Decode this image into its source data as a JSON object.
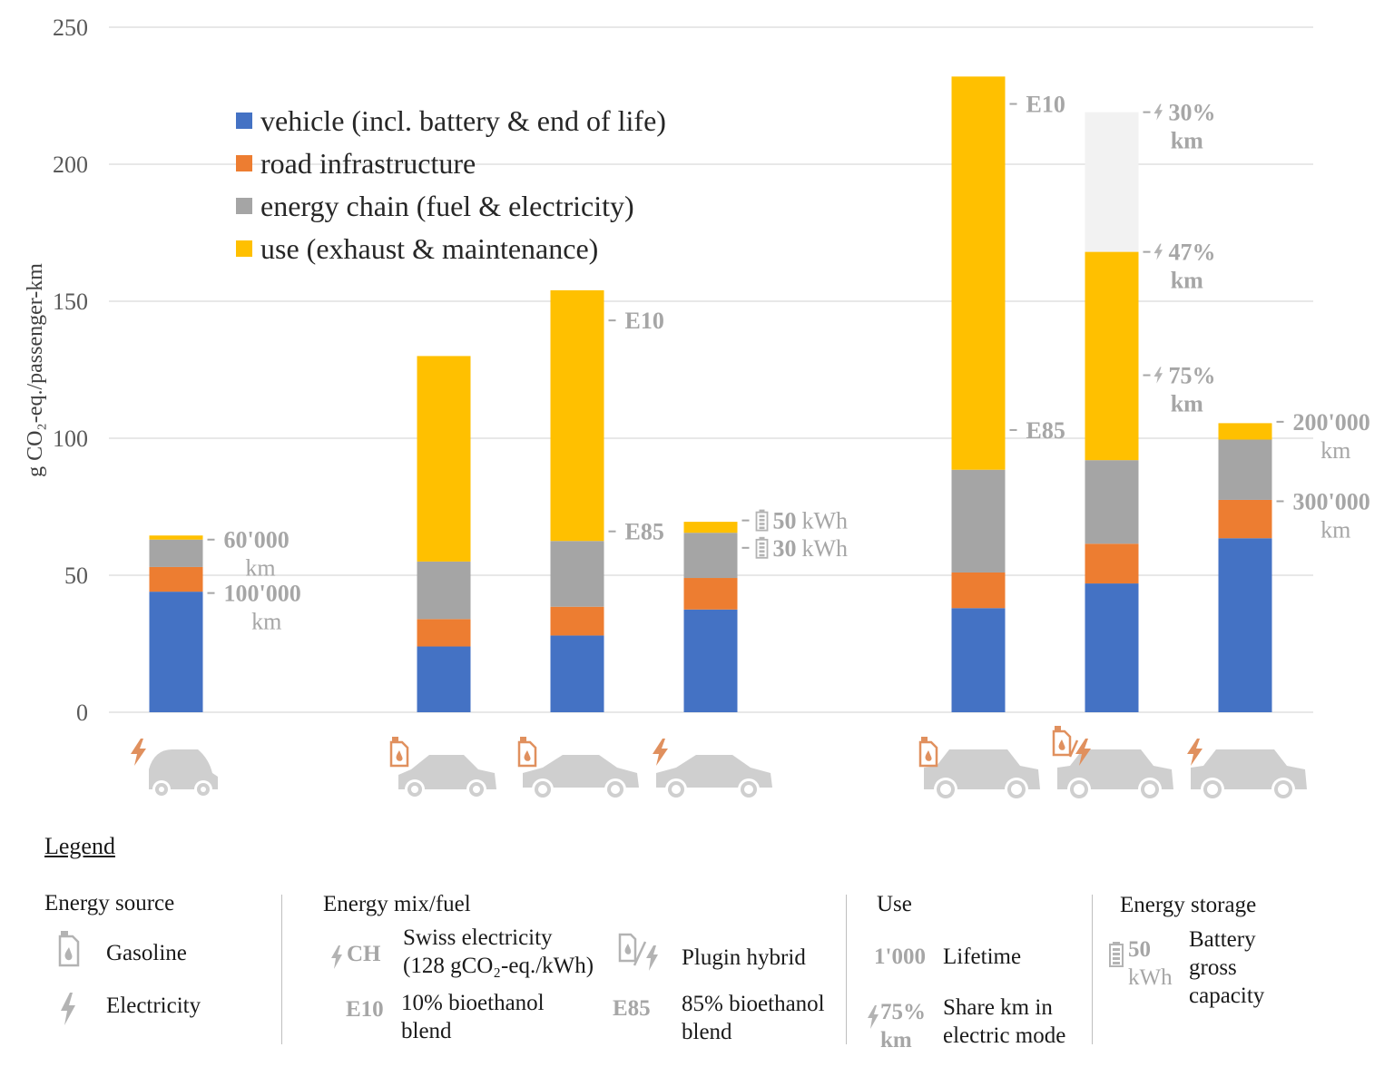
{
  "chart_data": {
    "type": "bar",
    "stacked": true,
    "ylabel": "g CO₂-eq./passenger-km",
    "ylim": [
      0,
      250
    ],
    "yticks": [
      0,
      50,
      100,
      150,
      200,
      250
    ],
    "grid": true,
    "legend_position": "top-left",
    "categories": [
      "electric small car",
      "gasoline compact SUV",
      "gasoline mid-size car",
      "electric mid-size car",
      "gasoline large SUV",
      "plugin hybrid large SUV",
      "electric large SUV"
    ],
    "vehicle_icons": [
      {
        "energy": "electricity",
        "body": "small-car"
      },
      {
        "energy": "gasoline",
        "body": "compact-suv"
      },
      {
        "energy": "gasoline",
        "body": "sedan"
      },
      {
        "energy": "electricity",
        "body": "sedan"
      },
      {
        "energy": "gasoline",
        "body": "large-suv"
      },
      {
        "energy": "plugin-hybrid",
        "body": "large-suv"
      },
      {
        "energy": "electricity",
        "body": "large-suv"
      }
    ],
    "series": [
      {
        "name": "vehicle (incl. battery & end of life)",
        "color": "#4472c4",
        "values": [
          44,
          24,
          28,
          37.5,
          38,
          47,
          63.5
        ]
      },
      {
        "name": "road infrastructure",
        "color": "#ed7d31",
        "values": [
          9,
          10,
          10.5,
          11.5,
          13,
          14.5,
          14
        ]
      },
      {
        "name": "energy chain (fuel & electricity)",
        "color": "#a5a5a5",
        "values": [
          10,
          21,
          24,
          16.5,
          37.5,
          30.5,
          22
        ]
      },
      {
        "name": "use (exhaust & maintenance)",
        "color": "#ffc000",
        "values": [
          1.5,
          75,
          91.5,
          4,
          143.5,
          76,
          6
        ]
      }
    ],
    "range_extensions": [
      {
        "category_index": 5,
        "from": 168,
        "to": 219,
        "color": "#f2f2f2"
      }
    ],
    "annotations": [
      {
        "category_index": 0,
        "y": 63,
        "lines": [
          "60'000",
          "km"
        ]
      },
      {
        "category_index": 0,
        "y": 43.5,
        "lines": [
          "100'000",
          "km"
        ]
      },
      {
        "category_index": 2,
        "y": 143,
        "lines": [
          "E10"
        ]
      },
      {
        "category_index": 2,
        "y": 66,
        "lines": [
          "E85"
        ]
      },
      {
        "category_index": 3,
        "y": 70,
        "icon": "battery",
        "value": "50",
        "unit": "kWh"
      },
      {
        "category_index": 3,
        "y": 60,
        "icon": "battery",
        "value": "30",
        "unit": "kWh"
      },
      {
        "category_index": 4,
        "y": 222,
        "lines": [
          "E10"
        ]
      },
      {
        "category_index": 4,
        "y": 103,
        "lines": [
          "E85"
        ]
      },
      {
        "category_index": 5,
        "y": 219,
        "icon": "bolt",
        "lines": [
          "30%",
          "km"
        ]
      },
      {
        "category_index": 5,
        "y": 168,
        "icon": "bolt",
        "lines": [
          "47%",
          "km"
        ]
      },
      {
        "category_index": 5,
        "y": 123,
        "icon": "bolt",
        "lines": [
          "75%",
          "km"
        ]
      },
      {
        "category_index": 6,
        "y": 106,
        "lines": [
          "200'000",
          "km"
        ]
      },
      {
        "category_index": 6,
        "y": 77,
        "lines": [
          "300'000",
          "km"
        ]
      }
    ]
  },
  "legend": {
    "title": "Legend",
    "energy_source": {
      "heading": "Energy source",
      "gasoline": "Gasoline",
      "electricity": "Electricity"
    },
    "energy_mix": {
      "heading": "Energy mix/fuel",
      "ch_tag": "CH",
      "ch_line1": "Swiss electricity",
      "ch_line2": "(128 gCO₂-eq./kWh)",
      "plugin": "Plugin hybrid",
      "e10_tag": "E10",
      "e10_line1": "10% bioethanol",
      "e10_line2": "blend",
      "e85_tag": "E85",
      "e85_line1": "85% bioethanol",
      "e85_line2": "blend"
    },
    "use": {
      "heading": "Use",
      "lifetime_tag": "1'000",
      "lifetime": "Lifetime",
      "share_tag1": "75%",
      "share_tag2": "km",
      "share_line1": "Share km in",
      "share_line2": "electric mode"
    },
    "storage": {
      "heading": "Energy storage",
      "tag_value": "50",
      "tag_unit": "kWh",
      "line1": "Battery",
      "line2": "gross",
      "line3": "capacity"
    }
  }
}
